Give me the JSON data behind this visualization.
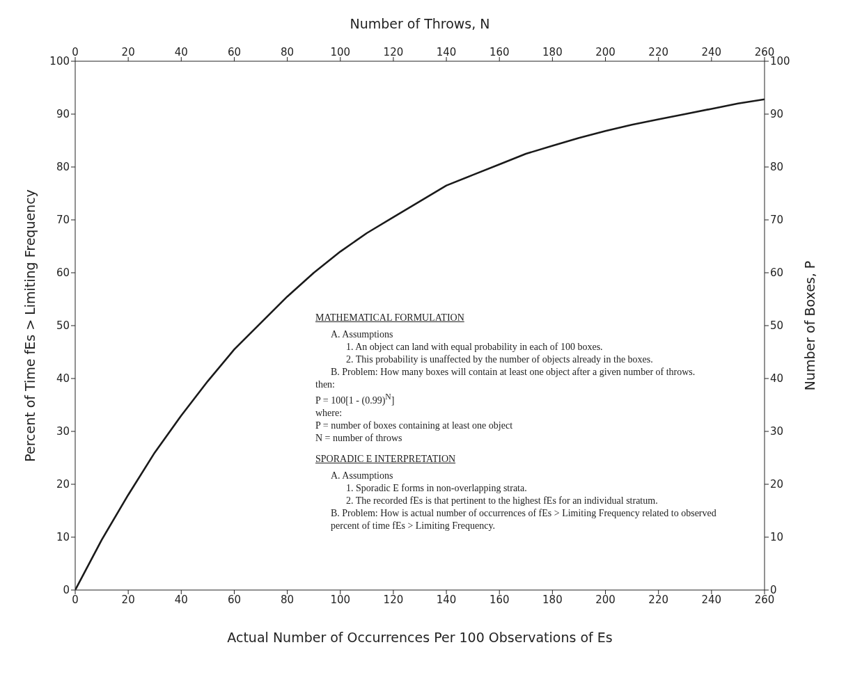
{
  "chart_data": {
    "type": "line",
    "xlabel": "Actual Number of Occurrences Per 100 Observations of Es",
    "ylabel": "Percent of Time fEs > Limiting Frequency",
    "x2label": "Number of Throws, N",
    "y2label": "Number of Boxes, P",
    "x": [
      0,
      10,
      20,
      30,
      40,
      50,
      60,
      70,
      80,
      90,
      100,
      110,
      120,
      130,
      140,
      150,
      160,
      170,
      180,
      190,
      200,
      210,
      220,
      230,
      240,
      250,
      260
    ],
    "series": [
      {
        "color": "#1a1a1a",
        "values": [
          0,
          9.5,
          18,
          26,
          33,
          39.5,
          45.5,
          50.5,
          55.5,
          60,
          64,
          67.5,
          70.5,
          73.5,
          76.5,
          78.5,
          80.5,
          82.5,
          84,
          85.5,
          86.8,
          88,
          89,
          90,
          91,
          92,
          92.8
        ]
      }
    ],
    "xlim": [
      0,
      260
    ],
    "xticks": [
      0,
      20,
      40,
      60,
      80,
      100,
      120,
      140,
      160,
      180,
      200,
      220,
      240,
      260
    ],
    "x2lim": [
      0,
      260
    ],
    "x2ticks": [
      0,
      20,
      40,
      60,
      80,
      100,
      120,
      140,
      160,
      180,
      200,
      220,
      240,
      260
    ],
    "ylim": [
      0,
      100
    ],
    "yticks": [
      0,
      10,
      20,
      30,
      40,
      50,
      60,
      70,
      80,
      90,
      100
    ],
    "y2lim": [
      0,
      100
    ],
    "y2ticks": [
      0,
      10,
      20,
      30,
      40,
      50,
      60,
      70,
      80,
      90,
      100
    ],
    "grid": false,
    "marker": "none",
    "line_style": "solid",
    "annotations": [
      "MATHEMATICAL FORMULATION",
      "A. Assumptions",
      "1. An object can land with equal probability in each of 100 boxes.",
      "2. This probability is unaffected by the number of objects already in the boxes.",
      "B. Problem: How many boxes will contain at least one object after a given number of throws.",
      "then:",
      "P = 100[1 - (0.99)$^{N}$]",
      "where:",
      "P = number of boxes containing at least one object",
      "N = number of throws",
      "SPORADIC E INTERPRETATION",
      "A. Assumptions",
      "1. Sporadic E forms in non-overlapping strata.",
      "2. The recorded fEs is that pertinent to the highest fEs for an individual stratum.",
      "B. Problem: How is actual number of occurrences of fEs > Limiting Frequency related to observed percent of time fEs > Limiting Frequency."
    ]
  }
}
